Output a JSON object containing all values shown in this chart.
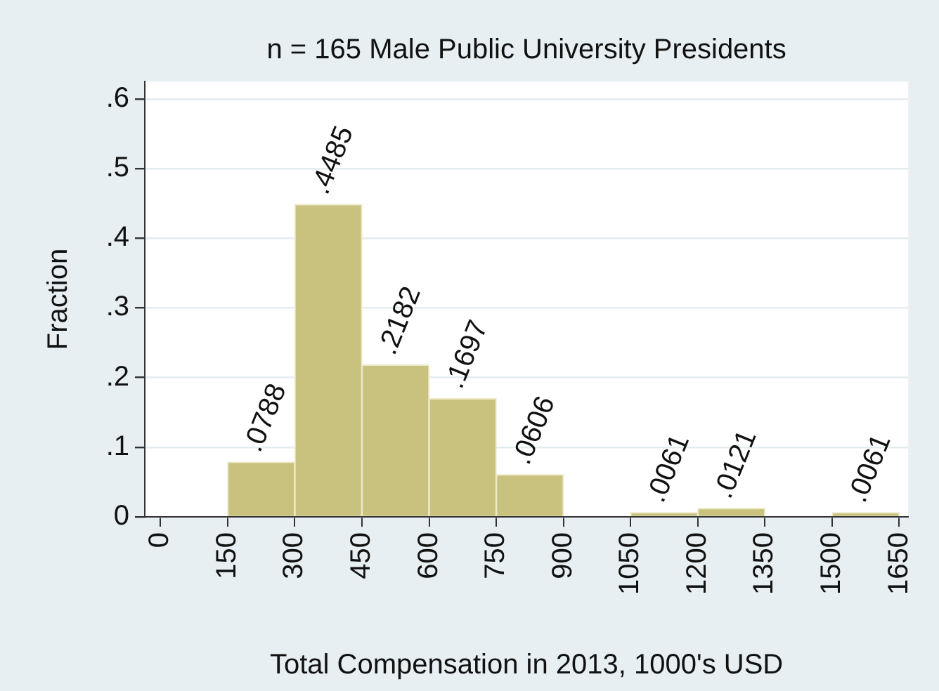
{
  "chart_data": {
    "type": "histogram",
    "title": "n = 165 Male Public University Presidents",
    "xlabel": "Total Compensation in 2013, 1000's USD",
    "ylabel": "Fraction",
    "bins": [
      150,
      300,
      450,
      600,
      750,
      900,
      1050,
      1200,
      1350,
      1500,
      1650
    ],
    "values": [
      0.0788,
      0.4485,
      0.2182,
      0.1697,
      0.0606,
      0,
      0.0061,
      0.0121,
      0,
      0.0061
    ],
    "value_labels": [
      ".0788",
      ".4485",
      ".2182",
      ".1697",
      ".0606",
      null,
      ".0061",
      ".0121",
      null,
      ".0061"
    ],
    "color": "#c9c27e",
    "xlim": [
      -35,
      1670
    ],
    "xticks": [
      0,
      150,
      300,
      450,
      600,
      750,
      900,
      1050,
      1200,
      1350,
      1500,
      1650
    ],
    "ylim": [
      0,
      0.625
    ],
    "yticks": [
      0,
      {
        "value": 0.1,
        "label": ".1"
      },
      {
        "value": 0.2,
        "label": ".2"
      },
      {
        "value": 0.3,
        "label": ".3"
      },
      {
        "value": 0.4,
        "label": ".4"
      },
      {
        "value": 0.5,
        "label": ".5"
      },
      {
        "value": 0.6,
        "label": ".6"
      }
    ],
    "grid": "y",
    "legend": false
  }
}
